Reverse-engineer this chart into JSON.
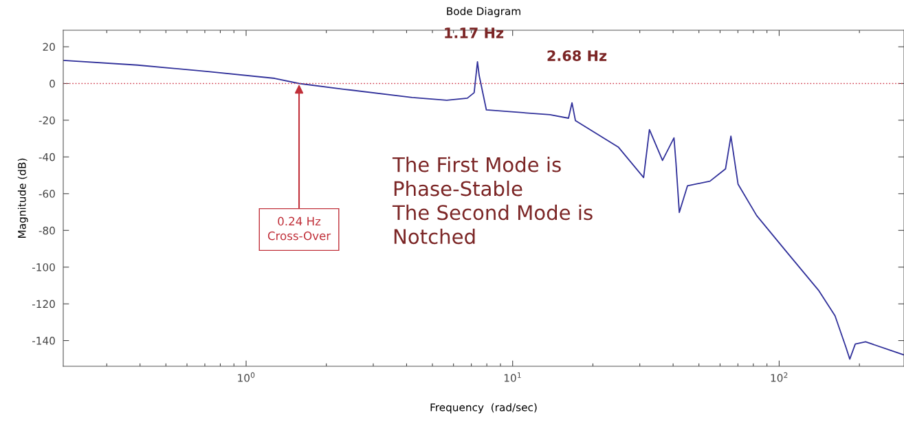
{
  "chart_data": {
    "type": "line",
    "title": "Bode Diagram",
    "xlabel": "Frequency  (rad/sec)",
    "ylabel": "Magnitude (dB)",
    "log": "x",
    "xlim": [
      0.206,
      294
    ],
    "ylim": [
      -154,
      29
    ],
    "xticks": [
      {
        "value": 1,
        "label": "10$^{0}$"
      },
      {
        "value": 10,
        "label": "10$^{1}$"
      },
      {
        "value": 100,
        "label": "10$^{2}$"
      }
    ],
    "yticks": [
      -140,
      -120,
      -100,
      -80,
      -60,
      -40,
      -20,
      0,
      20
    ],
    "grid": false,
    "marker": "none",
    "line_style": "solid",
    "x": [
      0.206,
      0.392,
      0.709,
      1.28,
      1.58,
      2.32,
      4.2,
      5.66,
      6.76,
      7.17,
      7.38,
      7.49,
      7.97,
      13.8,
      16.2,
      16.7,
      17.2,
      24.9,
      31.0,
      32.6,
      36.5,
      40.3,
      41.0,
      42.2,
      45.3,
      55.0,
      62.9,
      65.9,
      70.1,
      82.3,
      107.6,
      141,
      162,
      178,
      184,
      193,
      211,
      294
    ],
    "series": [
      {
        "color": "#30309a",
        "values": [
          12.6,
          10.0,
          6.6,
          2.8,
          0,
          -3.1,
          -7.6,
          -9.1,
          -8.0,
          -5.0,
          11.8,
          4.3,
          -14.4,
          -17,
          -18.9,
          -10.5,
          -20.2,
          -34.6,
          -51.2,
          -25.1,
          -41.9,
          -29.6,
          -43.2,
          -70.2,
          -55.7,
          -53.2,
          -46.5,
          -28.7,
          -54.8,
          -71.9,
          -92.4,
          -112.9,
          -126.5,
          -143.6,
          -150.1,
          -141.9,
          -140.7,
          -147.8
        ]
      }
    ],
    "ref_lines": [
      {
        "axis": "y",
        "value": 0,
        "color": "#d04050",
        "line_style": "dotted"
      }
    ],
    "annotations": [
      {
        "text": "1.17 Hz",
        "x": 7.38,
        "y": 11.8
      },
      {
        "text": "2.68 Hz",
        "x": 16.7,
        "y": -10.5
      },
      {
        "text": "0.24 Hz\nCross-Over",
        "x": 1.58,
        "y": 0
      },
      "The First Mode is\nPhase-Stable\nThe Second Mode is\nNotched"
    ]
  }
}
